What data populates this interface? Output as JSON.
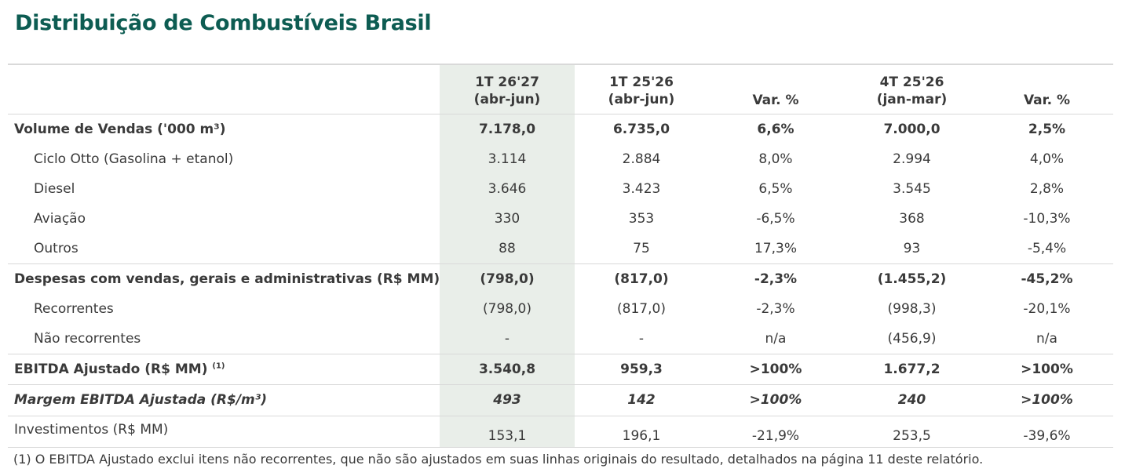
{
  "title": "Distribuição de Combustíveis Brasil",
  "columns": [
    {
      "line1": "1T 26'27",
      "line2": "(abr-jun)"
    },
    {
      "line1": "1T 25'26",
      "line2": "(abr-jun)"
    },
    {
      "line1": "",
      "line2": "Var. %"
    },
    {
      "line1": "4T 25'26",
      "line2": "(jan-mar)"
    },
    {
      "line1": "",
      "line2": "Var. %"
    }
  ],
  "rows": {
    "volume": {
      "label": "Volume de Vendas ('000 m³)",
      "values": [
        "7.178,0",
        "6.735,0",
        "6,6%",
        "7.000,0",
        "2,5%"
      ]
    },
    "ciclo_otto": {
      "label": "Ciclo Otto (Gasolina + etanol)",
      "values": [
        "3.114",
        "2.884",
        "8,0%",
        "2.994",
        "4,0%"
      ]
    },
    "diesel": {
      "label": "Diesel",
      "values": [
        "3.646",
        "3.423",
        "6,5%",
        "3.545",
        "2,8%"
      ]
    },
    "aviacao": {
      "label": "Aviação",
      "values": [
        "330",
        "353",
        "-6,5%",
        "368",
        "-10,3%"
      ]
    },
    "outros": {
      "label": "Outros",
      "values": [
        "88",
        "75",
        "17,3%",
        "93",
        "-5,4%"
      ]
    },
    "despesas": {
      "label": "Despesas com vendas, gerais e administrativas (R$ MM)",
      "values": [
        "(798,0)",
        "(817,0)",
        "-2,3%",
        "(1.455,2)",
        "-45,2%"
      ]
    },
    "recorrentes": {
      "label": "Recorrentes",
      "values": [
        "(798,0)",
        "(817,0)",
        "-2,3%",
        "(998,3)",
        "-20,1%"
      ]
    },
    "nao_recorrentes": {
      "label": "Não recorrentes",
      "values": [
        "-",
        "-",
        "n/a",
        "(456,9)",
        "n/a"
      ]
    },
    "ebitda": {
      "label": "EBITDA Ajustado (R$ MM)",
      "sup": "(1)",
      "values": [
        "3.540,8",
        "959,3",
        ">100%",
        "1.677,2",
        ">100%"
      ]
    },
    "margem": {
      "label": "Margem EBITDA Ajustada (R$/m³)",
      "values": [
        "493",
        "142",
        ">100%",
        "240",
        ">100%"
      ]
    },
    "investimentos": {
      "label": "Investimentos (R$ MM)",
      "values": [
        "153,1",
        "196,1",
        "-21,9%",
        "253,5",
        "-39,6%"
      ]
    }
  },
  "footnote": "(1) O EBITDA Ajustado exclui itens não recorrentes, que não são ajustados em suas linhas originais do resultado, detalhados na página 11 deste relatório.",
  "colors": {
    "title": "#0d5c52",
    "highlight_column": "#e9eee9",
    "rule": "#d9d9d9"
  }
}
